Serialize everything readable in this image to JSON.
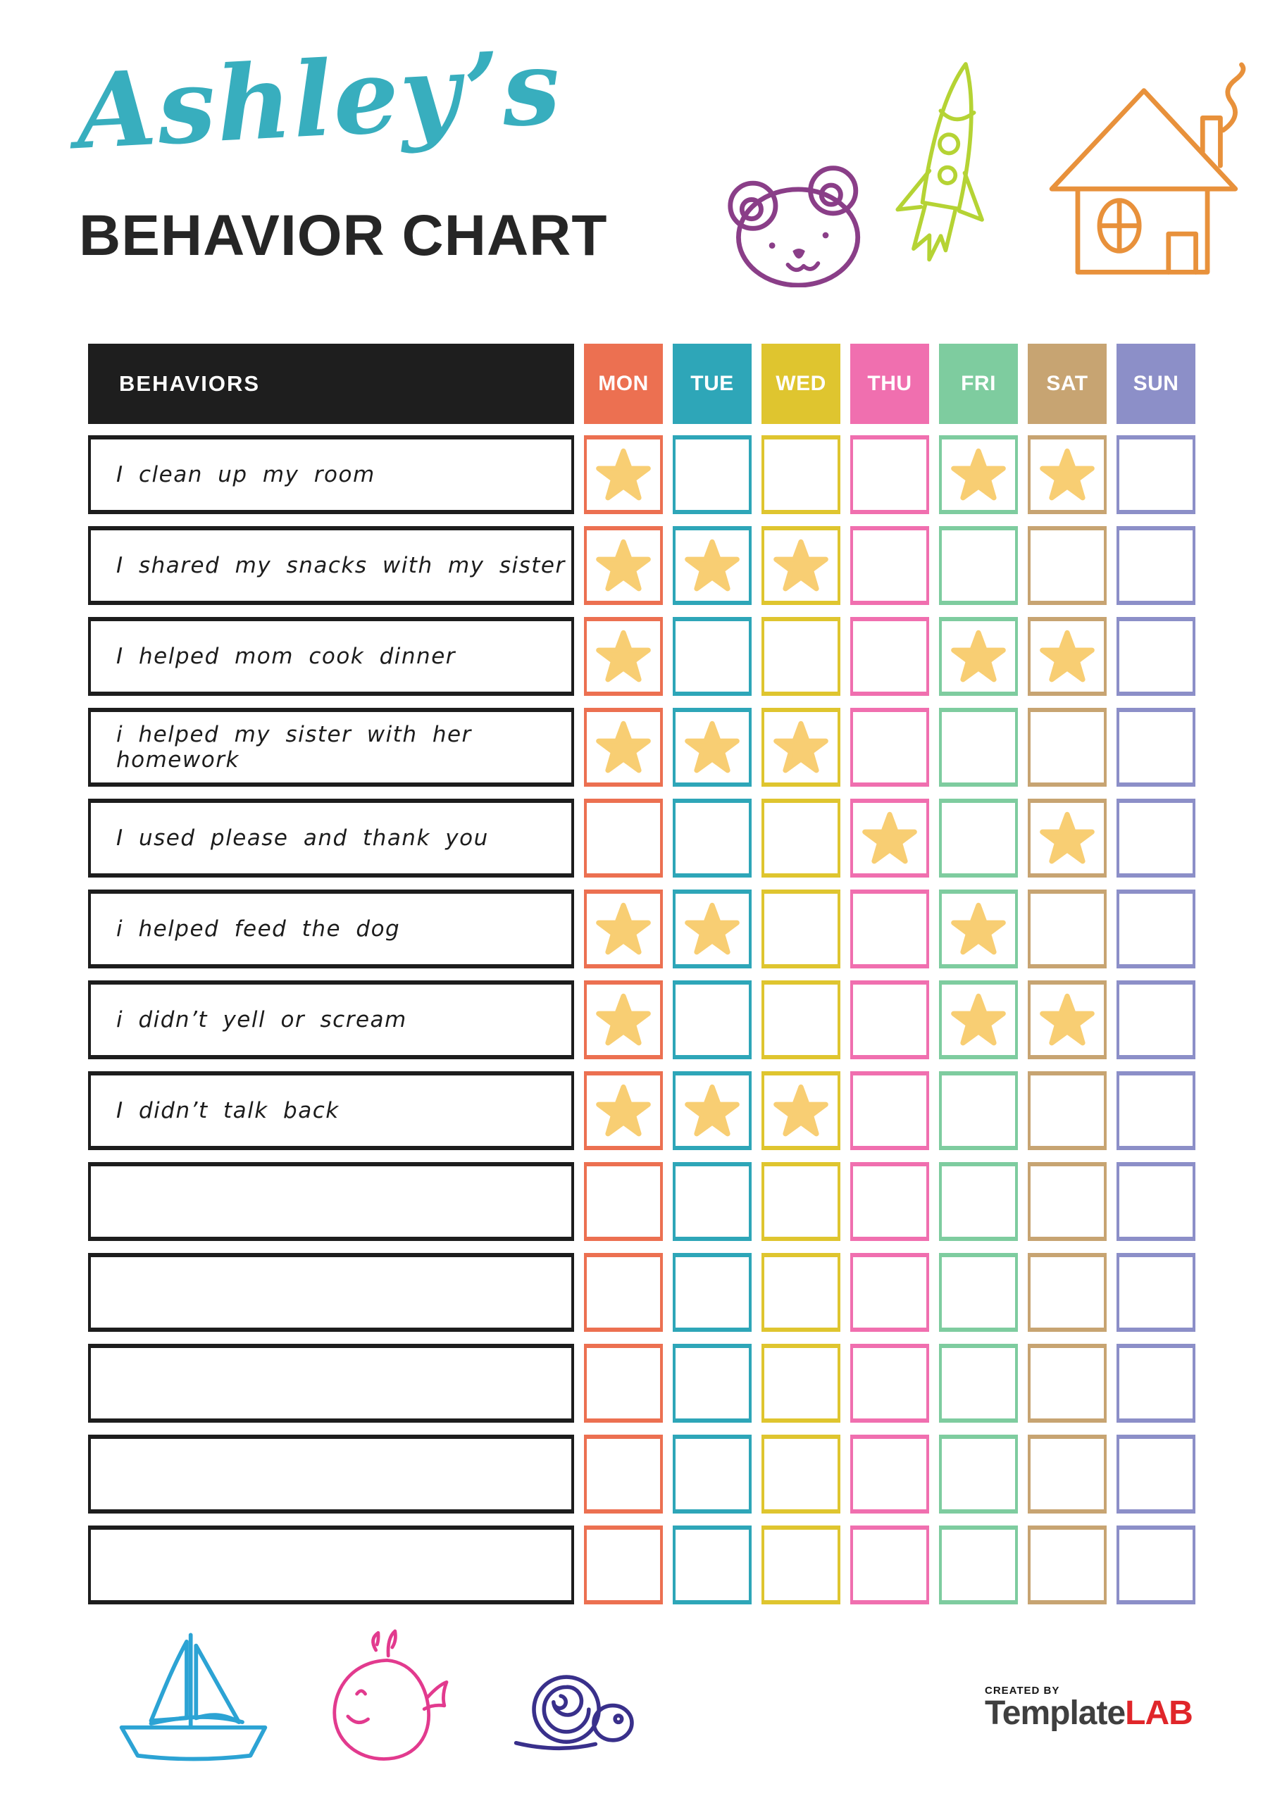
{
  "header": {
    "name": "Ashley’s",
    "name_color": "#38aebe",
    "title": "BEHAVIOR CHART",
    "doodles": [
      "bear-icon",
      "rocket-icon",
      "house-icon"
    ]
  },
  "table": {
    "header_label": "BEHAVIORS",
    "header_bg": "#1e1e1e",
    "star_color": "#f8ce73",
    "days": [
      {
        "label": "MON",
        "color": "#ec7051"
      },
      {
        "label": "TUE",
        "color": "#2ea6b8"
      },
      {
        "label": "WED",
        "color": "#dfc52f"
      },
      {
        "label": "THU",
        "color": "#f06faf"
      },
      {
        "label": "FRI",
        "color": "#7ecc9f"
      },
      {
        "label": "SAT",
        "color": "#c7a472"
      },
      {
        "label": "SUN",
        "color": "#8c8fc8"
      }
    ],
    "rows": [
      {
        "label": "I clean up my room",
        "stars": [
          1,
          0,
          0,
          0,
          1,
          1,
          0
        ]
      },
      {
        "label": "I shared my snacks with my sister",
        "stars": [
          1,
          1,
          1,
          0,
          0,
          0,
          0
        ]
      },
      {
        "label": "I helped mom cook dinner",
        "stars": [
          1,
          0,
          0,
          0,
          1,
          1,
          0
        ]
      },
      {
        "label": "i helped my sister with her homework",
        "stars": [
          1,
          1,
          1,
          0,
          0,
          0,
          0
        ]
      },
      {
        "label": "I used please and thank you",
        "stars": [
          0,
          0,
          0,
          1,
          0,
          1,
          0
        ]
      },
      {
        "label": "i helped feed the dog",
        "stars": [
          1,
          1,
          0,
          0,
          1,
          0,
          0
        ]
      },
      {
        "label": "i didn’t yell or scream",
        "stars": [
          1,
          0,
          0,
          0,
          1,
          1,
          0
        ]
      },
      {
        "label": "I didn’t talk back",
        "stars": [
          1,
          1,
          1,
          0,
          0,
          0,
          0
        ]
      },
      {
        "label": "",
        "stars": [
          0,
          0,
          0,
          0,
          0,
          0,
          0
        ]
      },
      {
        "label": "",
        "stars": [
          0,
          0,
          0,
          0,
          0,
          0,
          0
        ]
      },
      {
        "label": "",
        "stars": [
          0,
          0,
          0,
          0,
          0,
          0,
          0
        ]
      },
      {
        "label": "",
        "stars": [
          0,
          0,
          0,
          0,
          0,
          0,
          0
        ]
      },
      {
        "label": "",
        "stars": [
          0,
          0,
          0,
          0,
          0,
          0,
          0
        ]
      }
    ]
  },
  "footer": {
    "doodles": [
      "sailboat-icon",
      "whale-icon",
      "snail-icon"
    ],
    "logo": {
      "created_by": "CREATED BY",
      "brand_name": "Template",
      "brand_suffix": "LAB"
    }
  },
  "icon_colors": {
    "bear": "#8a3e88",
    "rocket": "#b5d334",
    "house": "#e8913b",
    "sailboat": "#2ca3d4",
    "whale": "#e23a8e",
    "snail": "#39308b"
  }
}
